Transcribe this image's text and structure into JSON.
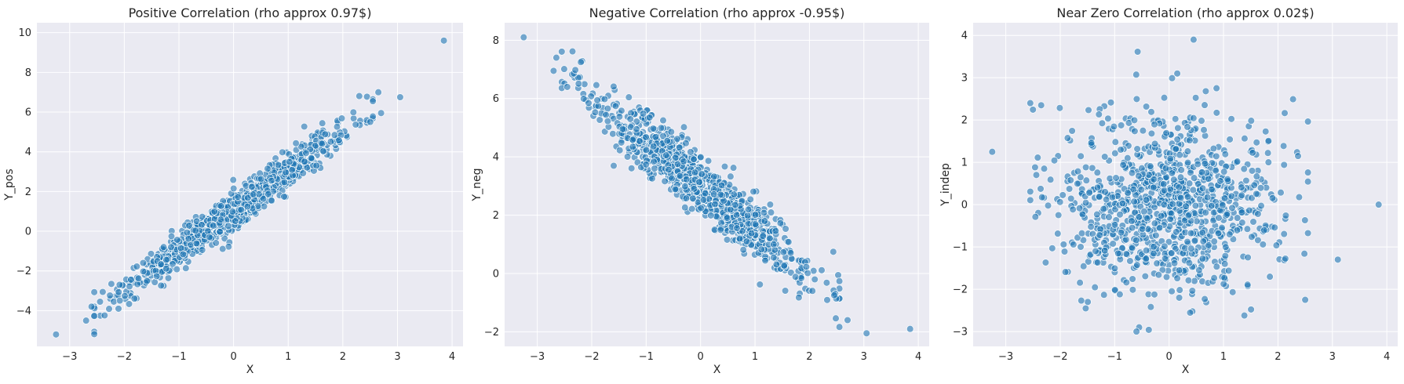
{
  "colors": {
    "point": "#1f77b4",
    "plot_background": "#eaeaf2",
    "grid": "#ffffff"
  },
  "chart_data": [
    {
      "type": "scatter",
      "title": "Positive Correlation (rho approx 0.97$)",
      "xlabel": "X",
      "ylabel": "Y_pos",
      "xlim": [
        -3.6,
        4.2
      ],
      "ylim": [
        -5.8,
        10.5
      ],
      "xticks": [
        -3,
        -2,
        -1,
        0,
        1,
        2,
        3,
        4
      ],
      "yticks": [
        -4,
        -2,
        0,
        2,
        4,
        6,
        8,
        10
      ],
      "grid": true,
      "series_color": "#1f77b4",
      "relation": {
        "slope": 2.0,
        "intercept": 1.0,
        "noise": 0.45
      },
      "points_shown": 1000,
      "outliers": [
        [
          -3.25,
          -5.2
        ],
        [
          3.85,
          9.6
        ],
        [
          3.05,
          6.75
        ],
        [
          2.65,
          7.0
        ],
        [
          2.55,
          6.55
        ],
        [
          2.7,
          5.95
        ],
        [
          -2.7,
          -4.5
        ],
        [
          -2.6,
          -3.8
        ]
      ]
    },
    {
      "type": "scatter",
      "title": "Negative Correlation (rho approx -0.95$)",
      "xlabel": "X",
      "ylabel": "Y_neg",
      "xlim": [
        -3.6,
        4.2
      ],
      "ylim": [
        -2.5,
        8.6
      ],
      "xticks": [
        -3,
        -2,
        -1,
        0,
        1,
        2,
        3,
        4
      ],
      "yticks": [
        -2,
        0,
        2,
        4,
        6,
        8
      ],
      "grid": true,
      "series_color": "#1f77b4",
      "relation": {
        "slope": -1.5,
        "intercept": 3.0,
        "noise": 0.5
      },
      "points_shown": 1000,
      "outliers": [
        [
          -3.25,
          8.1
        ],
        [
          3.85,
          -1.9
        ],
        [
          3.05,
          -2.05
        ],
        [
          2.7,
          -1.6
        ],
        [
          -2.65,
          7.4
        ],
        [
          -2.2,
          7.25
        ],
        [
          -2.7,
          6.95
        ],
        [
          -2.45,
          6.4
        ]
      ]
    },
    {
      "type": "scatter",
      "title": "Near Zero Correlation (rho approx 0.02$)",
      "xlabel": "X",
      "ylabel": "Y_indep",
      "xlim": [
        -3.6,
        4.2
      ],
      "ylim": [
        -3.35,
        4.3
      ],
      "xticks": [
        -3,
        -2,
        -1,
        0,
        1,
        2,
        3,
        4
      ],
      "yticks": [
        -3,
        -2,
        -1,
        0,
        1,
        2,
        3,
        4
      ],
      "grid": true,
      "series_color": "#1f77b4",
      "relation": {
        "slope": 0.02,
        "intercept": 0.0,
        "noise": 1.0
      },
      "points_shown": 1000,
      "outliers": [
        [
          -3.25,
          1.25
        ],
        [
          3.85,
          0.0
        ],
        [
          3.1,
          -1.3
        ],
        [
          0.45,
          3.9
        ],
        [
          0.15,
          3.1
        ],
        [
          2.5,
          -2.25
        ],
        [
          -0.55,
          -2.9
        ],
        [
          -2.55,
          2.4
        ],
        [
          -2.35,
          2.35
        ],
        [
          -0.6,
          -3.0
        ]
      ]
    }
  ]
}
